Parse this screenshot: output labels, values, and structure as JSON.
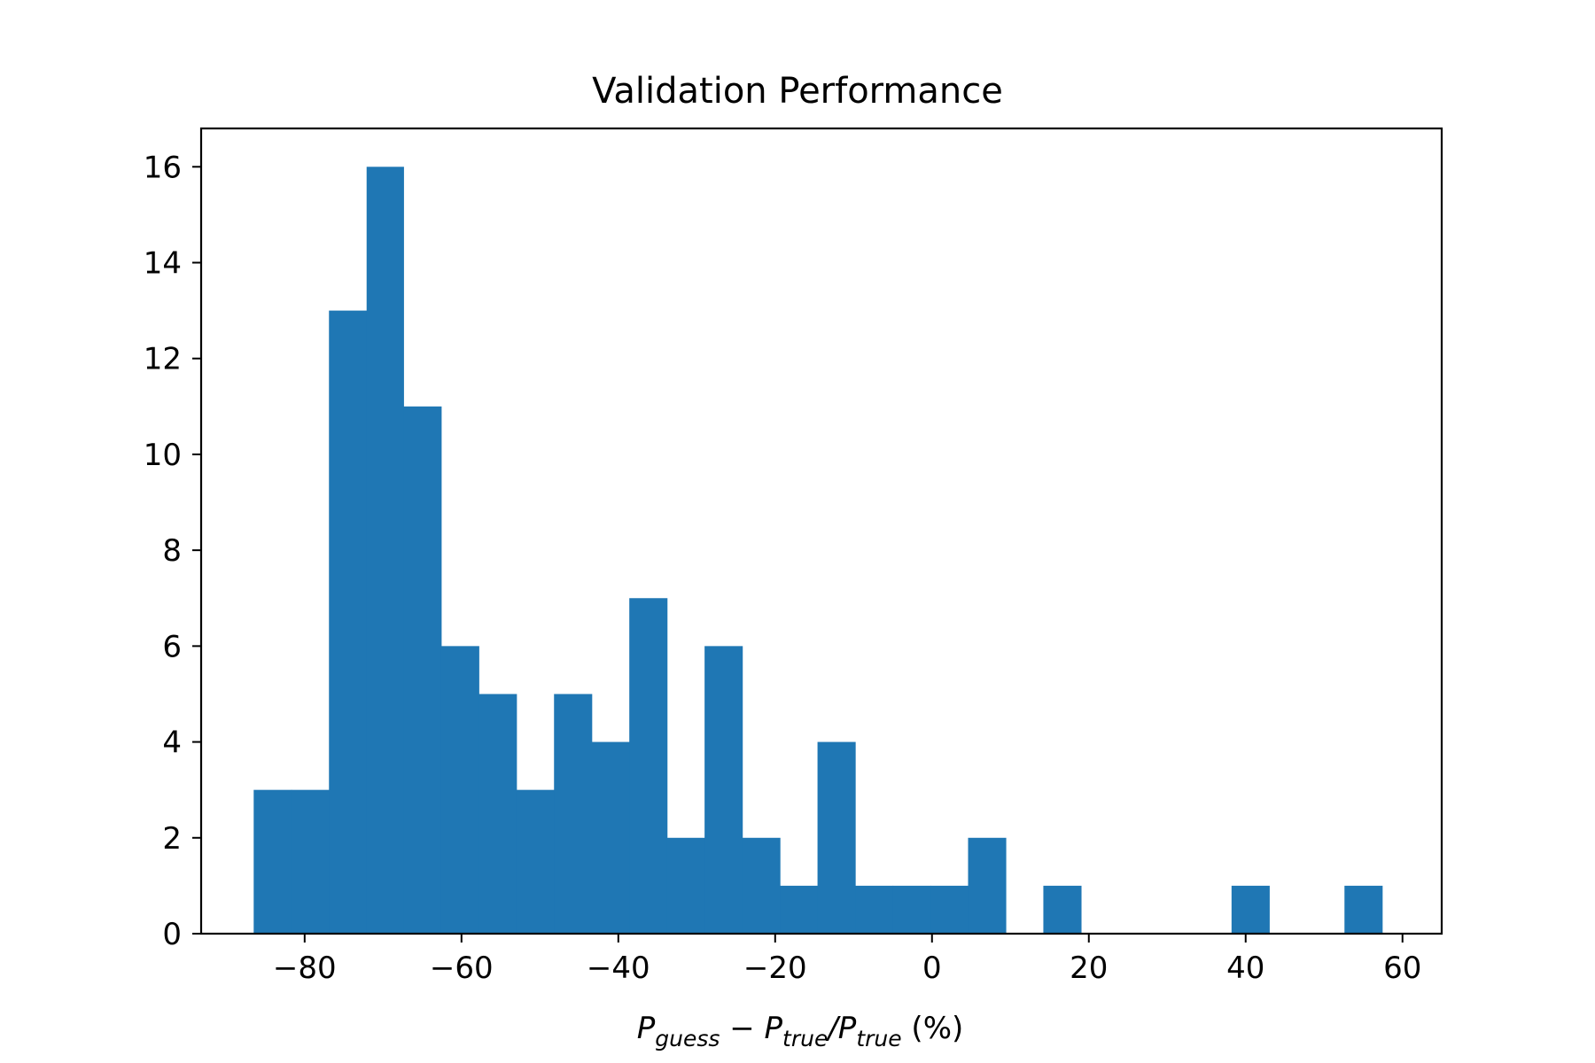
{
  "chart_data": {
    "type": "bar",
    "title": "Validation Performance",
    "xlabel": {
      "parts": [
        {
          "text": "P",
          "style": "italic"
        },
        {
          "text": "guess",
          "style": "italic-sub"
        },
        {
          "text": " − ",
          "style": "normal"
        },
        {
          "text": "P",
          "style": "italic"
        },
        {
          "text": "true",
          "style": "italic-sub"
        },
        {
          "text": "/",
          "style": "italic"
        },
        {
          "text": "P",
          "style": "italic"
        },
        {
          "text": "true",
          "style": "italic-sub"
        },
        {
          "text": " (%)",
          "style": "normal"
        }
      ]
    },
    "ylabel": "",
    "xlim": [
      -93.2,
      65.0
    ],
    "ylim": [
      0,
      16.8
    ],
    "xticks": [
      -80,
      -60,
      -40,
      -20,
      0,
      20,
      40,
      60
    ],
    "xtick_labels": [
      "−80",
      "−60",
      "−40",
      "−20",
      "0",
      "20",
      "40",
      "60"
    ],
    "yticks": [
      0,
      2,
      4,
      6,
      8,
      10,
      12,
      14,
      16
    ],
    "ytick_labels": [
      "0",
      "2",
      "4",
      "6",
      "8",
      "10",
      "12",
      "14",
      "16"
    ],
    "bar_color": "#1f77b4",
    "grid": false,
    "bins": [
      {
        "x0": -86.5,
        "x1": -81.7,
        "count": 3
      },
      {
        "x0": -81.7,
        "x1": -76.9,
        "count": 3
      },
      {
        "x0": -76.9,
        "x1": -72.1,
        "count": 13
      },
      {
        "x0": -72.1,
        "x1": -67.4,
        "count": 16
      },
      {
        "x0": -67.4,
        "x1": -62.6,
        "count": 11
      },
      {
        "x0": -62.6,
        "x1": -57.8,
        "count": 6
      },
      {
        "x0": -57.8,
        "x1": -53.0,
        "count": 5
      },
      {
        "x0": -53.0,
        "x1": -48.2,
        "count": 3
      },
      {
        "x0": -48.2,
        "x1": -43.4,
        "count": 5
      },
      {
        "x0": -43.4,
        "x1": -38.6,
        "count": 4
      },
      {
        "x0": -38.6,
        "x1": -33.8,
        "count": 7
      },
      {
        "x0": -33.8,
        "x1": -29.0,
        "count": 2
      },
      {
        "x0": -29.0,
        "x1": -24.2,
        "count": 6
      },
      {
        "x0": -24.2,
        "x1": -19.4,
        "count": 2
      },
      {
        "x0": -19.4,
        "x1": -14.6,
        "count": 1
      },
      {
        "x0": -14.6,
        "x1": -9.8,
        "count": 4
      },
      {
        "x0": -9.8,
        "x1": -5.0,
        "count": 1
      },
      {
        "x0": -5.0,
        "x1": -0.2,
        "count": 1
      },
      {
        "x0": -0.2,
        "x1": 4.6,
        "count": 1
      },
      {
        "x0": 4.6,
        "x1": 9.4,
        "count": 2
      },
      {
        "x0": 9.4,
        "x1": 14.2,
        "count": 0
      },
      {
        "x0": 14.2,
        "x1": 19.0,
        "count": 1
      },
      {
        "x0": 19.0,
        "x1": 23.8,
        "count": 0
      },
      {
        "x0": 23.8,
        "x1": 28.6,
        "count": 0
      },
      {
        "x0": 28.6,
        "x1": 33.4,
        "count": 0
      },
      {
        "x0": 33.4,
        "x1": 38.2,
        "count": 0
      },
      {
        "x0": 38.2,
        "x1": 43.0,
        "count": 1
      },
      {
        "x0": 43.0,
        "x1": 47.8,
        "count": 0
      },
      {
        "x0": 47.8,
        "x1": 52.6,
        "count": 0
      },
      {
        "x0": 52.6,
        "x1": 57.4,
        "count": 1
      }
    ]
  }
}
